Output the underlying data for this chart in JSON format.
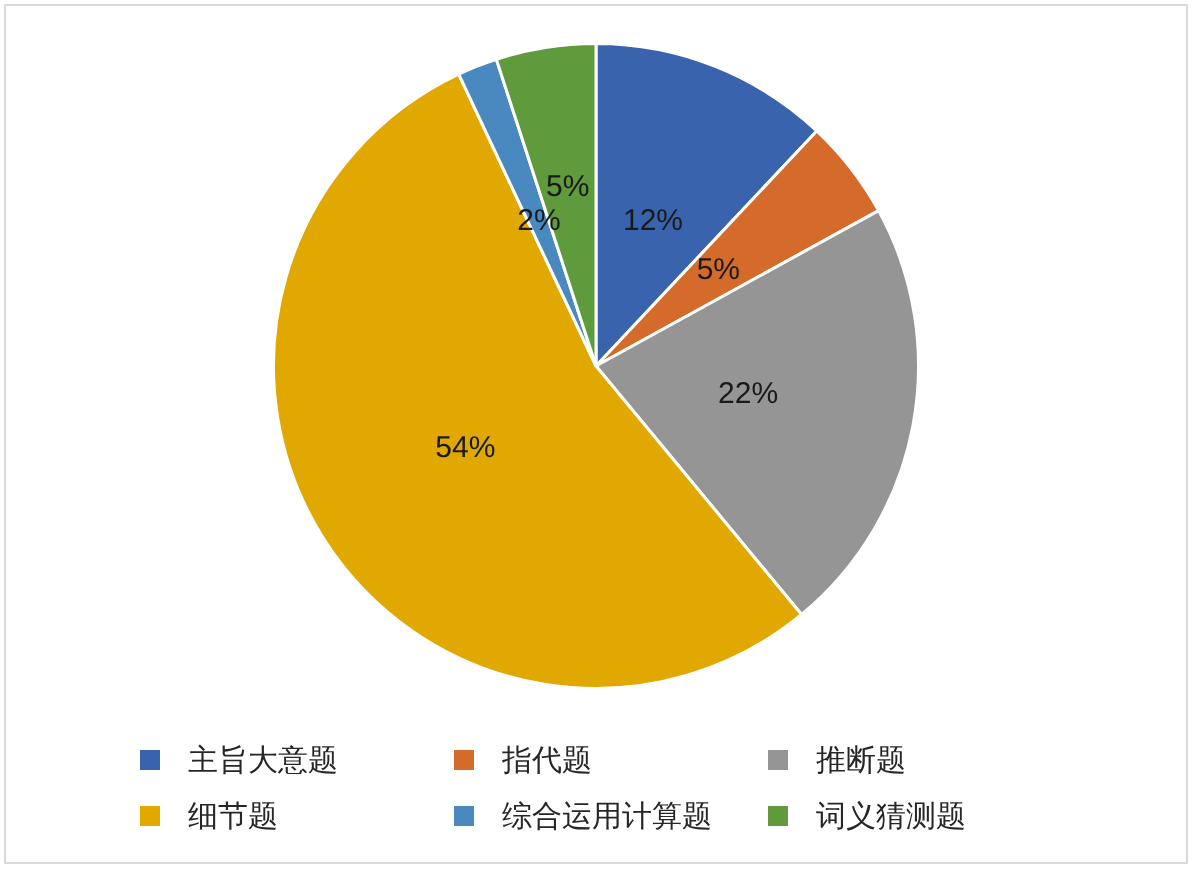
{
  "chart_data": {
    "type": "pie",
    "categories": [
      "主旨大意题",
      "指代题",
      "推断题",
      "细节题",
      "综合运用计算题",
      "词义猜测题"
    ],
    "values": [
      12,
      5,
      22,
      54,
      2,
      5
    ],
    "colors": [
      "#3a63ad",
      "#d46b2a",
      "#959595",
      "#e0a800",
      "#4a88c0",
      "#5f9a3c"
    ],
    "value_labels": [
      "12%",
      "5%",
      "22%",
      "54%",
      "2%",
      "5%"
    ],
    "legend": "bottom"
  }
}
